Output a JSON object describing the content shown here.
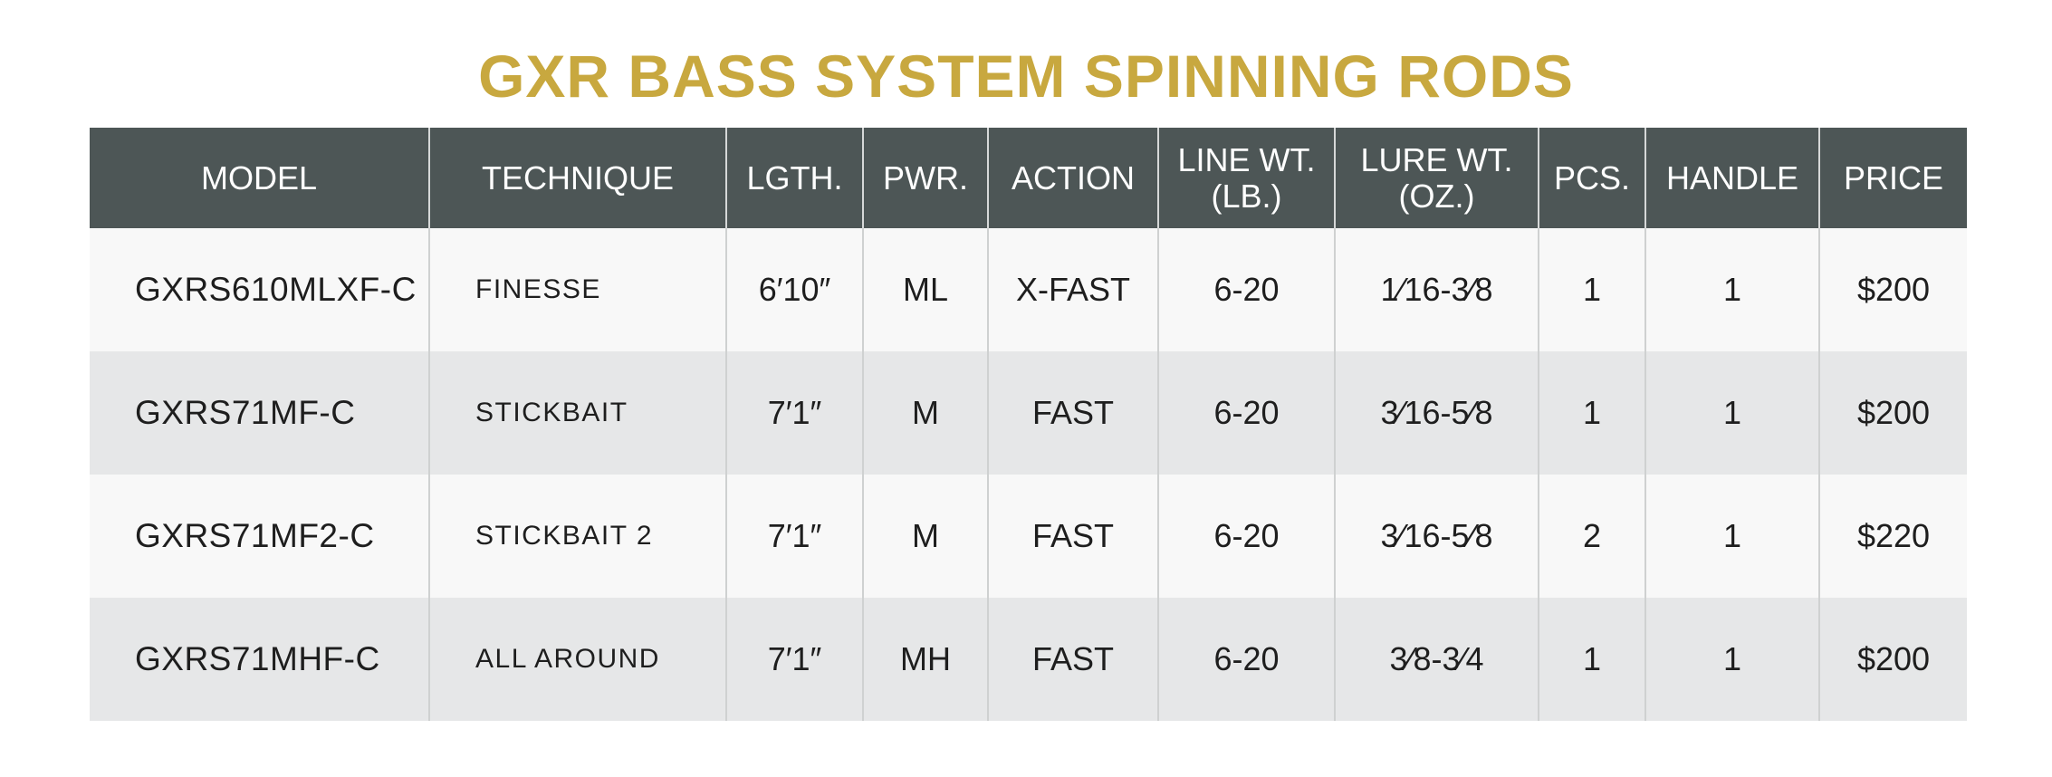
{
  "title": "GXR BASS SYSTEM SPINNING RODS",
  "columns": [
    {
      "line1": "MODEL",
      "line2": ""
    },
    {
      "line1": "TECHNIQUE",
      "line2": ""
    },
    {
      "line1": "LGTH.",
      "line2": ""
    },
    {
      "line1": "PWR.",
      "line2": ""
    },
    {
      "line1": "ACTION",
      "line2": ""
    },
    {
      "line1": "LINE WT.",
      "line2": "(LB.)"
    },
    {
      "line1": "LURE WT.",
      "line2": "(OZ.)"
    },
    {
      "line1": "PCS.",
      "line2": ""
    },
    {
      "line1": "HANDLE",
      "line2": ""
    },
    {
      "line1": "PRICE",
      "line2": ""
    }
  ],
  "rows": [
    {
      "model": "GXRS610MLXF-C",
      "technique": "FINESSE",
      "length": "6′10″",
      "power": "ML",
      "action": "X-FAST",
      "line_wt": "6-20",
      "lure_wt": "1⁄16-3⁄8",
      "pcs": "1",
      "handle": "1",
      "price": "$200"
    },
    {
      "model": "GXRS71MF-C",
      "technique": "STICKBAIT",
      "length": "7′1″",
      "power": "M",
      "action": "FAST",
      "line_wt": "6-20",
      "lure_wt": "3⁄16-5⁄8",
      "pcs": "1",
      "handle": "1",
      "price": "$200"
    },
    {
      "model": "GXRS71MF2-C",
      "technique": "STICKBAIT 2",
      "length": "7′1″",
      "power": "M",
      "action": "FAST",
      "line_wt": "6-20",
      "lure_wt": "3⁄16-5⁄8",
      "pcs": "2",
      "handle": "1",
      "price": "$220"
    },
    {
      "model": "GXRS71MHF-C",
      "technique": "ALL AROUND",
      "length": "7′1″",
      "power": "MH",
      "action": "FAST",
      "line_wt": "6-20",
      "lure_wt": "3⁄8-3⁄4",
      "pcs": "1",
      "handle": "1",
      "price": "$200"
    }
  ],
  "colors": {
    "title": "#c8a83f",
    "header_bg": "#4d5656",
    "header_text": "#ffffff",
    "row_light": "#f8f8f8",
    "row_dark": "#e6e7e8"
  }
}
